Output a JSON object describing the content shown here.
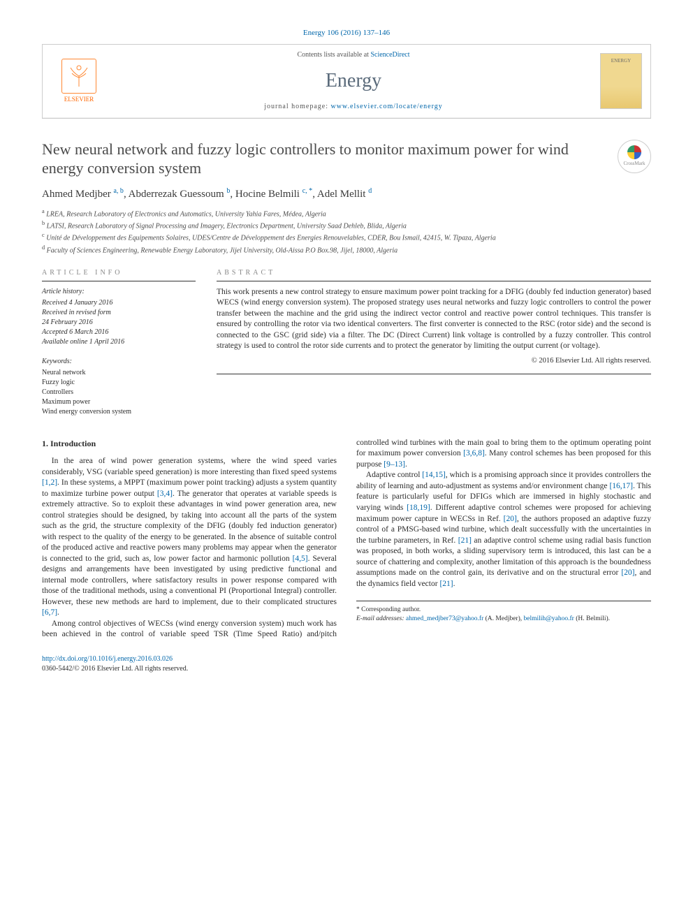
{
  "citation": "Energy 106 (2016) 137–146",
  "header": {
    "publisher": "ELSEVIER",
    "contents_prefix": "Contents lists available at ",
    "contents_link": "ScienceDirect",
    "journal": "Energy",
    "homepage_prefix": "journal homepage: ",
    "homepage_url": "www.elsevier.com/locate/energy",
    "cover_label": "ENERGY"
  },
  "crossmark": "CrossMark",
  "title": "New neural network and fuzzy logic controllers to monitor maximum power for wind energy conversion system",
  "authors_html": "Ahmed Medjber <sup>a, b</sup>, Abderrezak Guessoum <sup>b</sup>, Hocine Belmili <sup>c, *</sup>, Adel Mellit <sup>d</sup>",
  "affils": [
    "a LREA, Research Laboratory of Electronics and Automatics, University Yahia Fares, Médea, Algeria",
    "b LATSI, Research Laboratory of Signal Processing and Imagery, Electronics Department, University Saad Dehleb, Blida, Algeria",
    "c Unité de Développement des Equipements Solaires, UDES/Centre de Développement des Energies Renouvelables, CDER, Bou Ismail, 42415, W. Tipaza, Algeria",
    "d Faculty of Sciences Engineering, Renewable Energy Laboratory, Jijel University, Old-Aissa P.O Box.98, Jijel, 18000, Algeria"
  ],
  "info": {
    "label": "ARTICLE INFO",
    "history_head": "Article history:",
    "history": [
      "Received 4 January 2016",
      "Received in revised form",
      "24 February 2016",
      "Accepted 6 March 2016",
      "Available online 1 April 2016"
    ],
    "kw_head": "Keywords:",
    "keywords": [
      "Neural network",
      "Fuzzy logic",
      "Controllers",
      "Maximum power",
      "Wind energy conversion system"
    ]
  },
  "abstract": {
    "label": "ABSTRACT",
    "text": "This work presents a new control strategy to ensure maximum power point tracking for a DFIG (doubly fed induction generator) based WECS (wind energy conversion system). The proposed strategy uses neural networks and fuzzy logic controllers to control the power transfer between the machine and the grid using the indirect vector control and reactive power control techniques. This transfer is ensured by controlling the rotor via two identical converters. The first converter is connected to the RSC (rotor side) and the second is connected to the GSC (grid side) via a filter. The DC (Direct Current) link voltage is controlled by a fuzzy controller. This control strategy is used to control the rotor side currents and to protect the generator by limiting the output current (or voltage).",
    "copyright": "© 2016 Elsevier Ltd. All rights reserved."
  },
  "body": {
    "h_intro": "1. Introduction",
    "p1a": "In the area of wind power generation systems, where the wind speed varies considerably, VSG (variable speed generation) is more interesting than fixed speed systems ",
    "r1": "[1,2]",
    "p1b": ". In these systems, a MPPT (maximum power point tracking) adjusts a system quantity to maximize turbine power output ",
    "r2": "[3,4]",
    "p1c": ". The generator that operates at variable speeds is extremely attractive. So to exploit these advantages in wind power generation area, new control strategies should be designed, by taking into account all the parts of the system such as the grid, the structure complexity of the DFIG (doubly fed induction generator) with respect to the quality of the energy to be generated. In the absence of suitable control of the produced active and reactive powers many problems may appear when the generator is connected to the grid, such as, low power factor and harmonic pollution ",
    "r3": "[4,5]",
    "p1d": ". Several designs and arrangements have been investigated by using predictive functional and internal mode controllers, where satisfactory results in power response compared with those of the traditional methods, using a ",
    "p1e": "conventional PI (Proportional Integral) controller. However, these new methods are hard to implement, due to their complicated structures ",
    "r4": "[6,7]",
    "p1f": ".",
    "p2a": "Among control objectives of WECSs (wind energy conversion system) much work has been achieved in the control of variable speed TSR (Time Speed Ratio) and/pitch controlled wind turbines with the main goal to bring them to the optimum operating point for maximum power conversion ",
    "r5": "[3,6,8]",
    "p2b": ". Many control schemes has been proposed for this purpose ",
    "r6": "[9–13]",
    "p2c": ".",
    "p3a": "Adaptive control ",
    "r7": "[14,15]",
    "p3b": ", which is a promising approach since it provides controllers the ability of learning and auto-adjustment as systems and/or environment change ",
    "r8": "[16,17]",
    "p3c": ". This feature is particularly useful for DFIGs which are immersed in highly stochastic and varying winds ",
    "r9": "[18,19]",
    "p3d": ". Different adaptive control schemes were proposed for achieving maximum power capture in WECSs in Ref. ",
    "r10": "[20]",
    "p3e": ", the authors proposed an adaptive fuzzy control of a PMSG-based wind turbine, which dealt successfully with the uncertainties in the turbine parameters, in Ref. ",
    "r11": "[21]",
    "p3f": " an adaptive control scheme using radial basis function was proposed, in both works, a sliding supervisory term is introduced, this last can be a source of chattering and complexity, another limitation of this approach is the boundedness assumptions made on the control gain, its derivative and on the structural error ",
    "r12": "[20]",
    "p3g": ", and the dynamics field vector ",
    "r13": "[21]",
    "p3h": "."
  },
  "footnote": {
    "corr": "* Corresponding author.",
    "email_label": "E-mail addresses:",
    "email1": "ahmed_medjber73@yahoo.fr",
    "email1_who": " (A. Medjber), ",
    "email2": "belmilih@yahoo.fr",
    "email2_who": "(H. Belmili)."
  },
  "footer": {
    "doi": "http://dx.doi.org/10.1016/j.energy.2016.03.026",
    "issn_line": "0360-5442/© 2016 Elsevier Ltd. All rights reserved."
  }
}
